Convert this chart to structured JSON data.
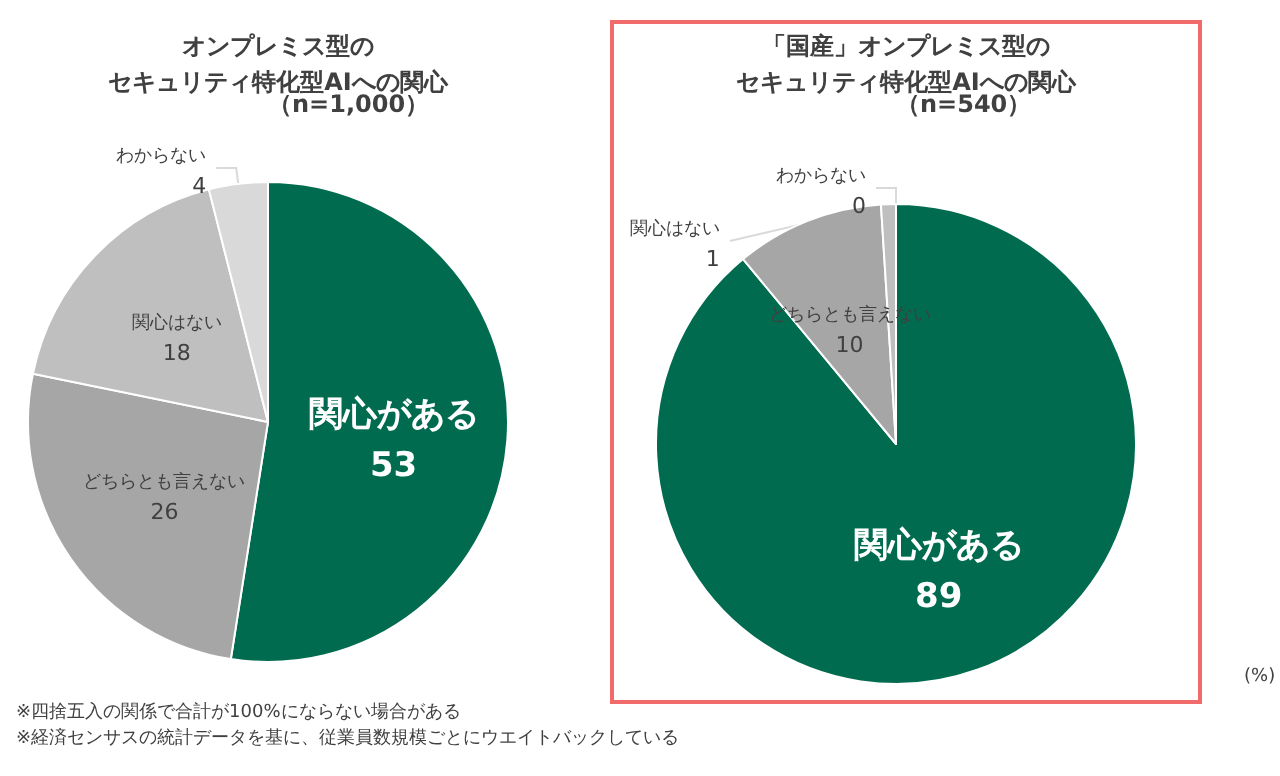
{
  "chart_data": [
    {
      "type": "pie",
      "title": "オンプレミス型の",
      "subtitle": "セキュリティ特化型AIへの関心",
      "categories": [
        "関心がある",
        "どちらとも言えない",
        "関心はない",
        "わからない"
      ],
      "values": [
        53,
        26,
        18,
        4
      ],
      "colors": [
        "#006b4f",
        "#a6a6a6",
        "#bfbfbf",
        "#d9d9d9"
      ],
      "data_labels": true,
      "legend": false,
      "annotations": [
        "（n=1,000）",
        "※四捨五入の関係で合計が100%にならない場合がある",
        "※経済センサスの統計データを基に、従業員数規模ごとにウエイトバックしている"
      ]
    },
    {
      "type": "pie",
      "title": "「国産」オンプレミス型の",
      "subtitle": "セキュリティ特化型AIへの関心",
      "categories": [
        "関心がある",
        "どちらとも言えない",
        "関心はない",
        "わからない"
      ],
      "values": [
        89,
        10,
        1,
        0
      ],
      "value_labels": [
        "89",
        "10",
        "1",
        "0"
      ],
      "colors": [
        "#006b4f",
        "#a6a6a6",
        "#bfbfbf",
        "#d9d9d9"
      ],
      "legend": false,
      "annotations": [
        "（n=540）",
        "(%)"
      ]
    }
  ]
}
